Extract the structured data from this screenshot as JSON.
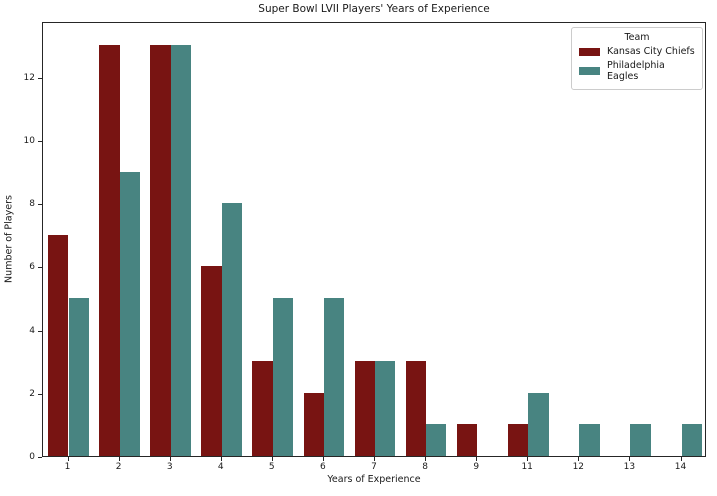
{
  "chart_data": {
    "type": "bar",
    "title": "Super Bowl LVII Players' Years of Experience",
    "xlabel": "Years of Experience",
    "ylabel": "Number of Players",
    "legend_title": "Team",
    "legend_position": "upper right",
    "grid": false,
    "categories": [
      "1",
      "2",
      "3",
      "4",
      "5",
      "6",
      "7",
      "8",
      "9",
      "11",
      "12",
      "13",
      "14"
    ],
    "series": [
      {
        "name": "Kansas City Chiefs",
        "color": "#781412",
        "values": [
          7,
          13,
          13,
          6,
          3,
          2,
          3,
          3,
          1,
          1,
          0,
          0,
          0
        ]
      },
      {
        "name": "Philadelphia Eagles",
        "color": "#488481",
        "values": [
          5,
          9,
          13,
          8,
          5,
          5,
          3,
          1,
          0,
          2,
          1,
          1,
          1
        ]
      }
    ],
    "yticks": [
      0,
      2,
      4,
      6,
      8,
      10,
      12
    ],
    "ylim": [
      0,
      13.76
    ]
  }
}
